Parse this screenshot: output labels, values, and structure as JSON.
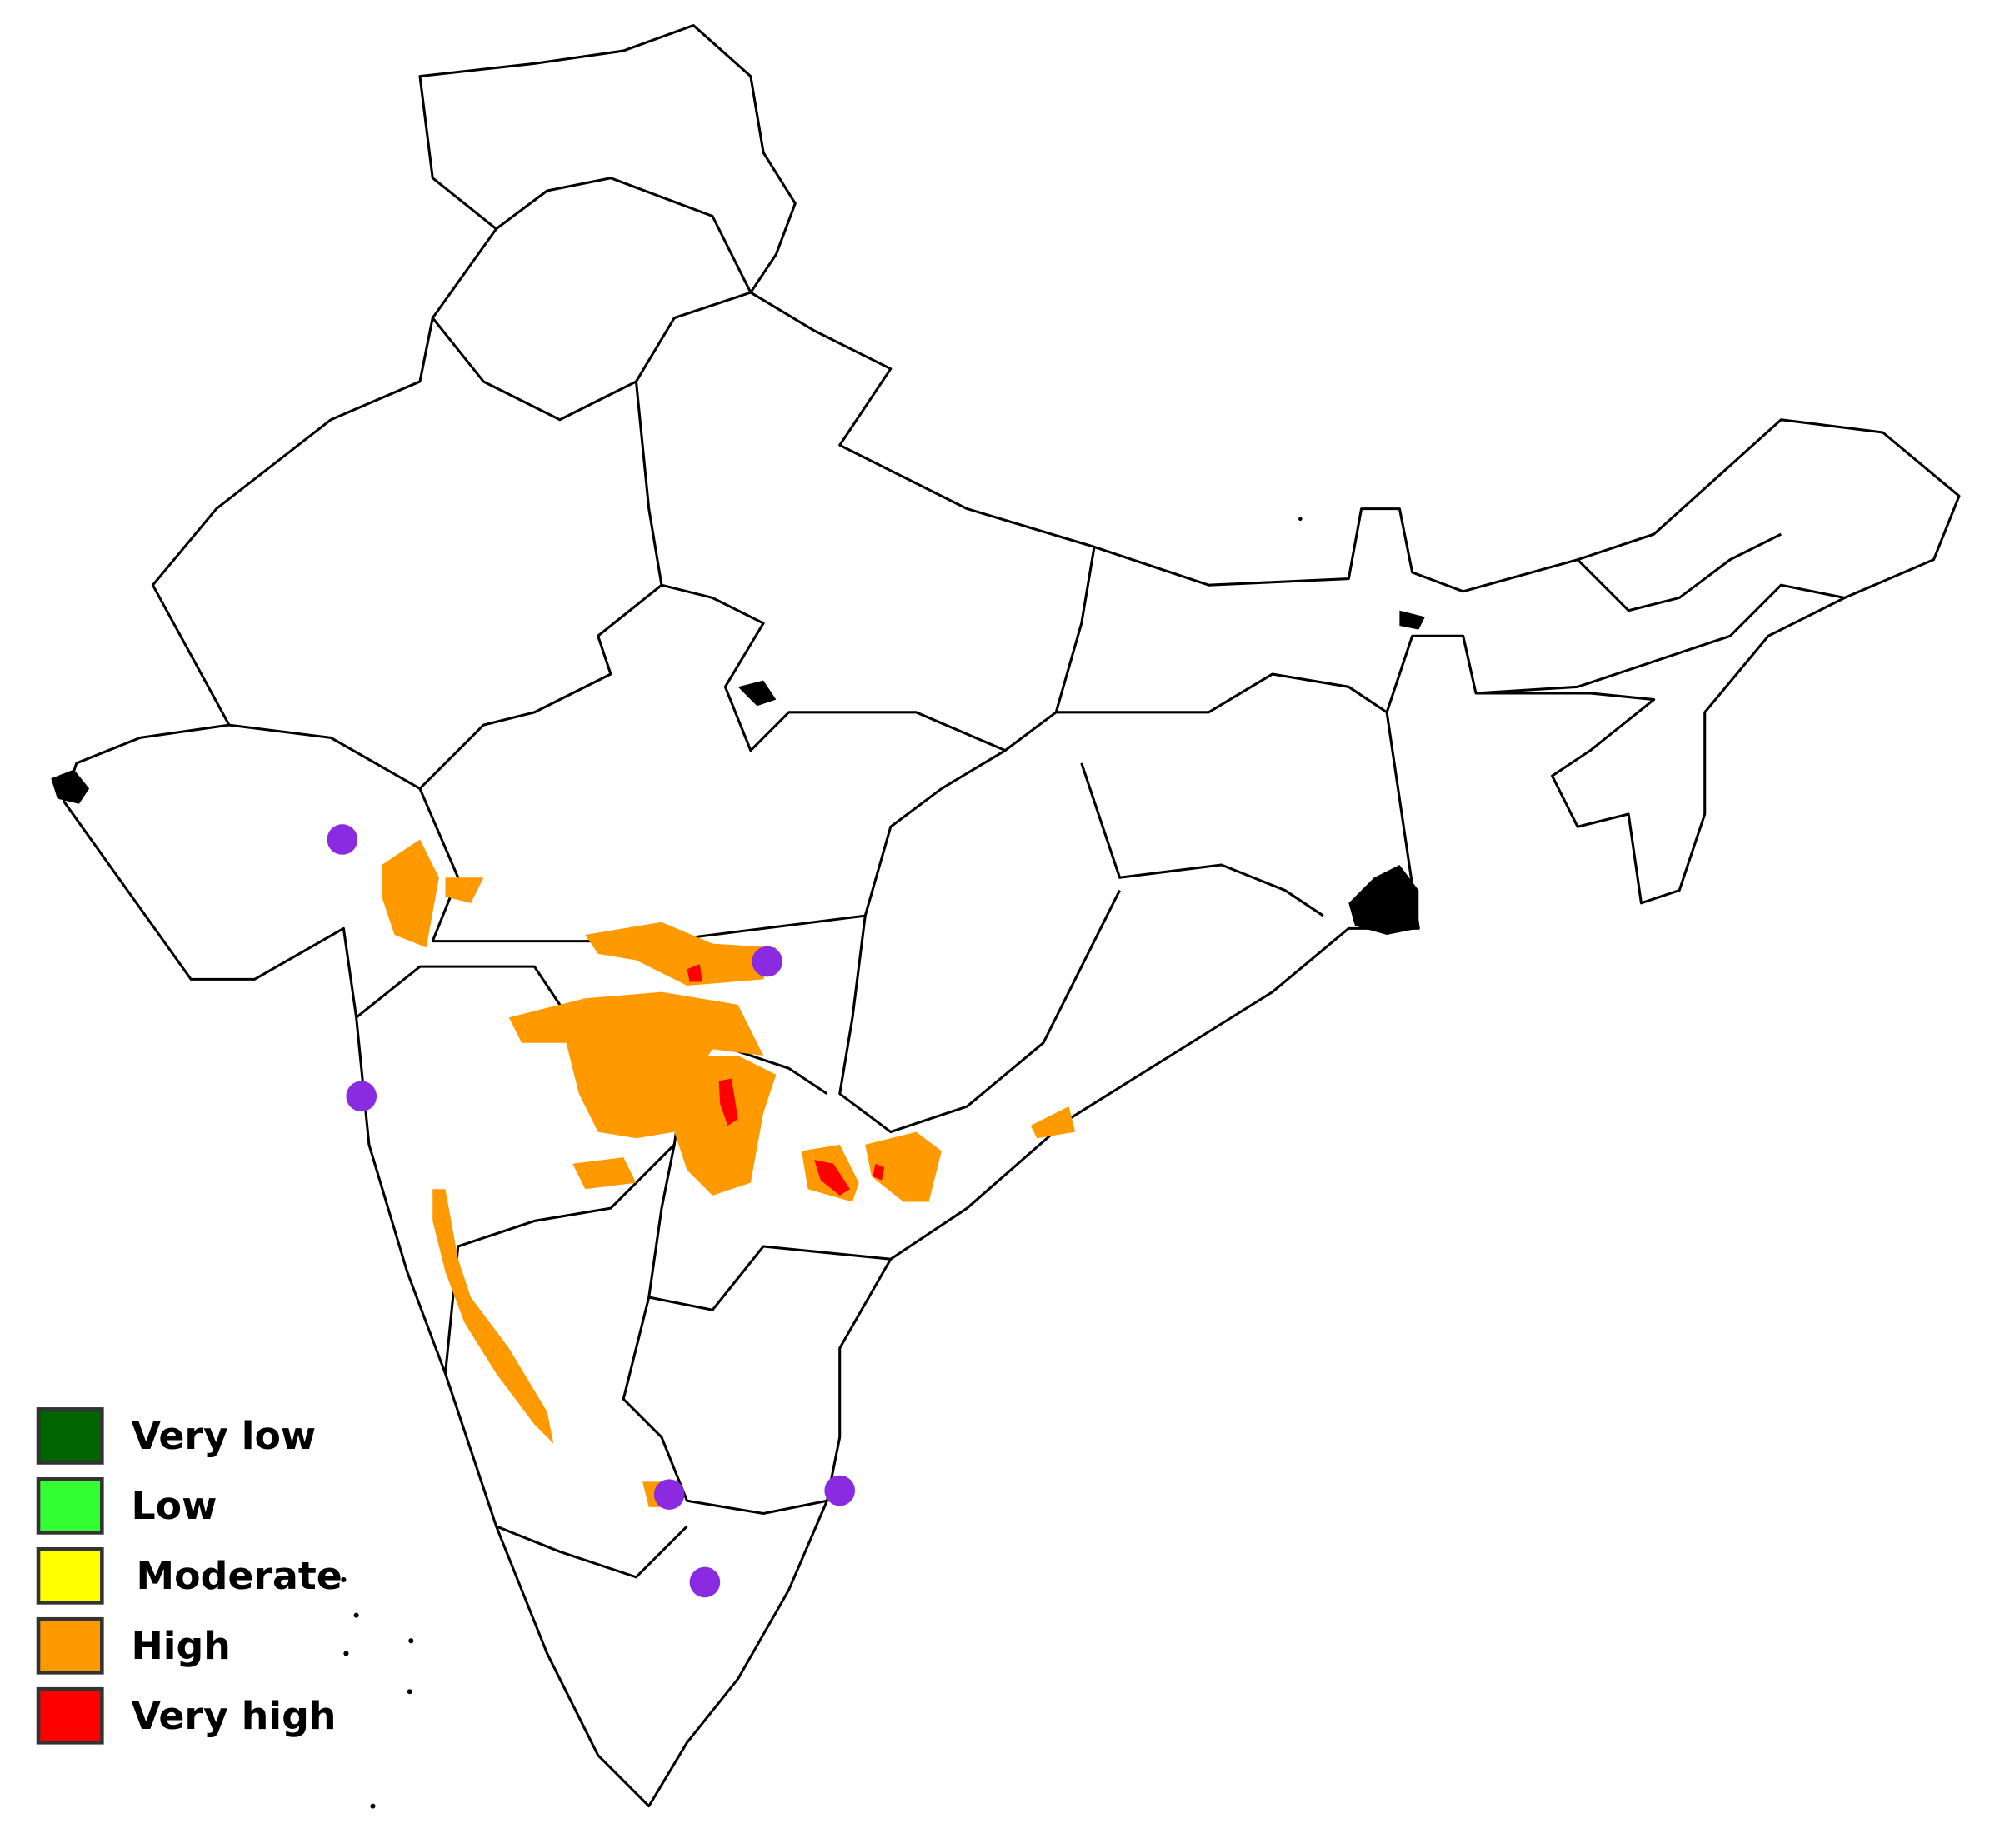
{
  "legend": {
    "items": [
      {
        "label": "Very low",
        "color": "#006400"
      },
      {
        "label": "Low",
        "color": "#33ff33"
      },
      {
        "label": "Moderate",
        "color": "#ffff00"
      },
      {
        "label": "High",
        "color": "#ff9900"
      },
      {
        "label": "Very high",
        "color": "#ff0000"
      }
    ]
  }
}
